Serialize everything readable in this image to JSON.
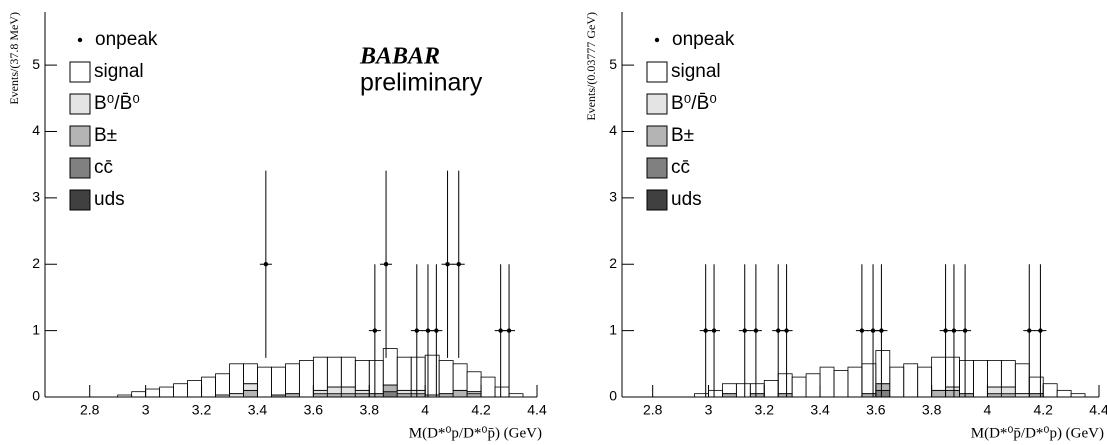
{
  "chart_data": [
    {
      "type": "histogram",
      "y_label": "Events/(37.8 MeV)",
      "x_label": "M(D*⁰p/D*⁰p̄) (GeV)",
      "annotations": [
        "BABAR",
        "preliminary"
      ],
      "xlim": [
        2.64,
        4.4
      ],
      "ylim": [
        0,
        5.8
      ],
      "xticks": [
        2.8,
        3,
        3.2,
        3.4,
        3.6,
        3.8,
        4,
        4.2,
        4.4
      ],
      "yticks": [
        0,
        1,
        2,
        3,
        4,
        5
      ],
      "bins": [
        2.75,
        2.8,
        2.85,
        2.9,
        2.95,
        3.0,
        3.05,
        3.1,
        3.15,
        3.2,
        3.25,
        3.3,
        3.35,
        3.4,
        3.45,
        3.5,
        3.55,
        3.6,
        3.65,
        3.7,
        3.75,
        3.8,
        3.85,
        3.9,
        3.95,
        4.0,
        4.05,
        4.1,
        4.15,
        4.2,
        4.25,
        4.3,
        4.35
      ],
      "points": {
        "name": "onpeak",
        "color": "#000000",
        "x": [
          3.43,
          3.82,
          3.86,
          3.97,
          4.01,
          4.04,
          4.08,
          4.12,
          4.27,
          4.3
        ],
        "y": [
          2,
          1,
          2,
          1,
          1,
          1,
          2,
          2,
          1,
          1
        ],
        "errors": [
          1.41,
          1,
          1.41,
          1,
          1,
          1,
          1.41,
          1.41,
          1,
          1
        ]
      },
      "series": [
        {
          "name": "uds",
          "color": "#404040",
          "values": [
            0,
            0,
            0,
            0,
            0,
            0,
            0,
            0,
            0,
            0,
            0,
            0,
            0,
            0,
            0,
            0,
            0,
            0,
            0,
            0,
            0,
            0,
            0,
            0,
            0,
            0,
            0,
            0,
            0,
            0,
            0,
            0
          ]
        },
        {
          "name": "cc̄",
          "color": "#808080",
          "values": [
            0,
            0,
            0,
            0,
            0,
            0,
            0,
            0,
            0,
            0,
            0,
            0,
            0,
            0,
            0,
            0,
            0,
            0,
            0,
            0,
            0,
            0,
            0.08,
            0,
            0,
            0,
            0,
            0,
            0,
            0,
            0,
            0
          ]
        },
        {
          "name": "B±",
          "color": "#b4b4b4",
          "values": [
            0,
            0,
            0,
            0,
            0,
            0,
            0,
            0,
            0,
            0,
            0,
            0,
            0.1,
            0,
            0.03,
            0.05,
            0,
            0.05,
            0.05,
            0.05,
            0.05,
            0.05,
            0.1,
            0.05,
            0.05,
            0,
            0.05,
            0.1,
            0.05,
            0,
            0,
            0
          ]
        },
        {
          "name": "B⁰/B̄⁰",
          "color": "#e4e4e4",
          "values": [
            0,
            0,
            0,
            0,
            0,
            0,
            0,
            0,
            0,
            0,
            0.03,
            0.05,
            0.1,
            0,
            0,
            0,
            0,
            0.05,
            0.1,
            0.1,
            0.05,
            0,
            0,
            0.05,
            0.05,
            0.03,
            0,
            0,
            0.03,
            0,
            0,
            0
          ]
        },
        {
          "name": "signal",
          "color": "#ffffff",
          "values": [
            0,
            0,
            0,
            0.03,
            0.08,
            0.12,
            0.15,
            0.2,
            0.25,
            0.3,
            0.32,
            0.45,
            0.3,
            0.45,
            0.42,
            0.45,
            0.55,
            0.5,
            0.45,
            0.45,
            0.45,
            0.5,
            0.55,
            0.5,
            0.5,
            0.6,
            0.5,
            0.4,
            0.3,
            0.3,
            0.15,
            0.05
          ]
        }
      ]
    },
    {
      "type": "histogram",
      "y_label": "Events/(0.03777 GeV)",
      "x_label": "M(D*⁰p̄/D*⁰p) (GeV)",
      "annotations": [],
      "xlim": [
        2.69,
        4.4
      ],
      "ylim": [
        0,
        5.8
      ],
      "xticks": [
        2.8,
        3,
        3.2,
        3.4,
        3.6,
        3.8,
        4,
        4.2,
        4.4
      ],
      "yticks": [
        0,
        1,
        2,
        3,
        4,
        5
      ],
      "bins": [
        2.75,
        2.8,
        2.85,
        2.9,
        2.95,
        3.0,
        3.05,
        3.1,
        3.15,
        3.2,
        3.25,
        3.3,
        3.35,
        3.4,
        3.45,
        3.5,
        3.55,
        3.6,
        3.65,
        3.7,
        3.75,
        3.8,
        3.85,
        3.9,
        3.95,
        4.0,
        4.05,
        4.1,
        4.15,
        4.2,
        4.25,
        4.3,
        4.35
      ],
      "points": {
        "name": "onpeak",
        "color": "#000000",
        "x": [
          2.99,
          3.02,
          3.13,
          3.17,
          3.25,
          3.28,
          3.55,
          3.59,
          3.62,
          3.85,
          3.88,
          3.92,
          4.15,
          4.19
        ],
        "y": [
          1,
          1,
          1,
          1,
          1,
          1,
          1,
          1,
          1,
          1,
          1,
          1,
          1,
          1
        ],
        "errors": [
          1,
          1,
          1,
          1,
          1,
          1,
          1,
          1,
          1,
          1,
          1,
          1,
          1,
          1
        ]
      },
      "series": [
        {
          "name": "uds",
          "color": "#404040",
          "values": [
            0,
            0,
            0,
            0,
            0,
            0,
            0,
            0,
            0,
            0,
            0,
            0,
            0,
            0,
            0,
            0,
            0,
            0,
            0,
            0,
            0,
            0,
            0,
            0,
            0,
            0,
            0,
            0,
            0,
            0,
            0,
            0
          ]
        },
        {
          "name": "cc̄",
          "color": "#808080",
          "values": [
            0,
            0,
            0,
            0,
            0,
            0,
            0,
            0,
            0,
            0,
            0,
            0,
            0,
            0,
            0,
            0,
            0,
            0.1,
            0,
            0,
            0,
            0,
            0,
            0,
            0,
            0,
            0,
            0,
            0,
            0,
            0,
            0
          ]
        },
        {
          "name": "B±",
          "color": "#b4b4b4",
          "values": [
            0,
            0,
            0,
            0,
            0,
            0,
            0.05,
            0,
            0.05,
            0,
            0.05,
            0,
            0,
            0,
            0,
            0,
            0.05,
            0.1,
            0,
            0,
            0,
            0.1,
            0.1,
            0.05,
            0,
            0.05,
            0.05,
            0,
            0.05,
            0,
            0,
            0
          ]
        },
        {
          "name": "B⁰/B̄⁰",
          "color": "#e4e4e4",
          "values": [
            0,
            0,
            0,
            0,
            0,
            0,
            0,
            0,
            0,
            0,
            0,
            0,
            0,
            0,
            0,
            0,
            0,
            0,
            0,
            0,
            0,
            0,
            0.05,
            0,
            0,
            0.1,
            0.1,
            0.05,
            0,
            0,
            0,
            0
          ]
        },
        {
          "name": "signal",
          "color": "#ffffff",
          "values": [
            0,
            0,
            0,
            0,
            0.05,
            0.1,
            0.15,
            0.2,
            0.15,
            0.25,
            0.3,
            0.3,
            0.35,
            0.45,
            0.4,
            0.45,
            0.45,
            0.5,
            0.45,
            0.5,
            0.45,
            0.5,
            0.45,
            0.5,
            0.55,
            0.4,
            0.4,
            0.45,
            0.25,
            0.2,
            0.1,
            0.05
          ]
        }
      ]
    }
  ]
}
